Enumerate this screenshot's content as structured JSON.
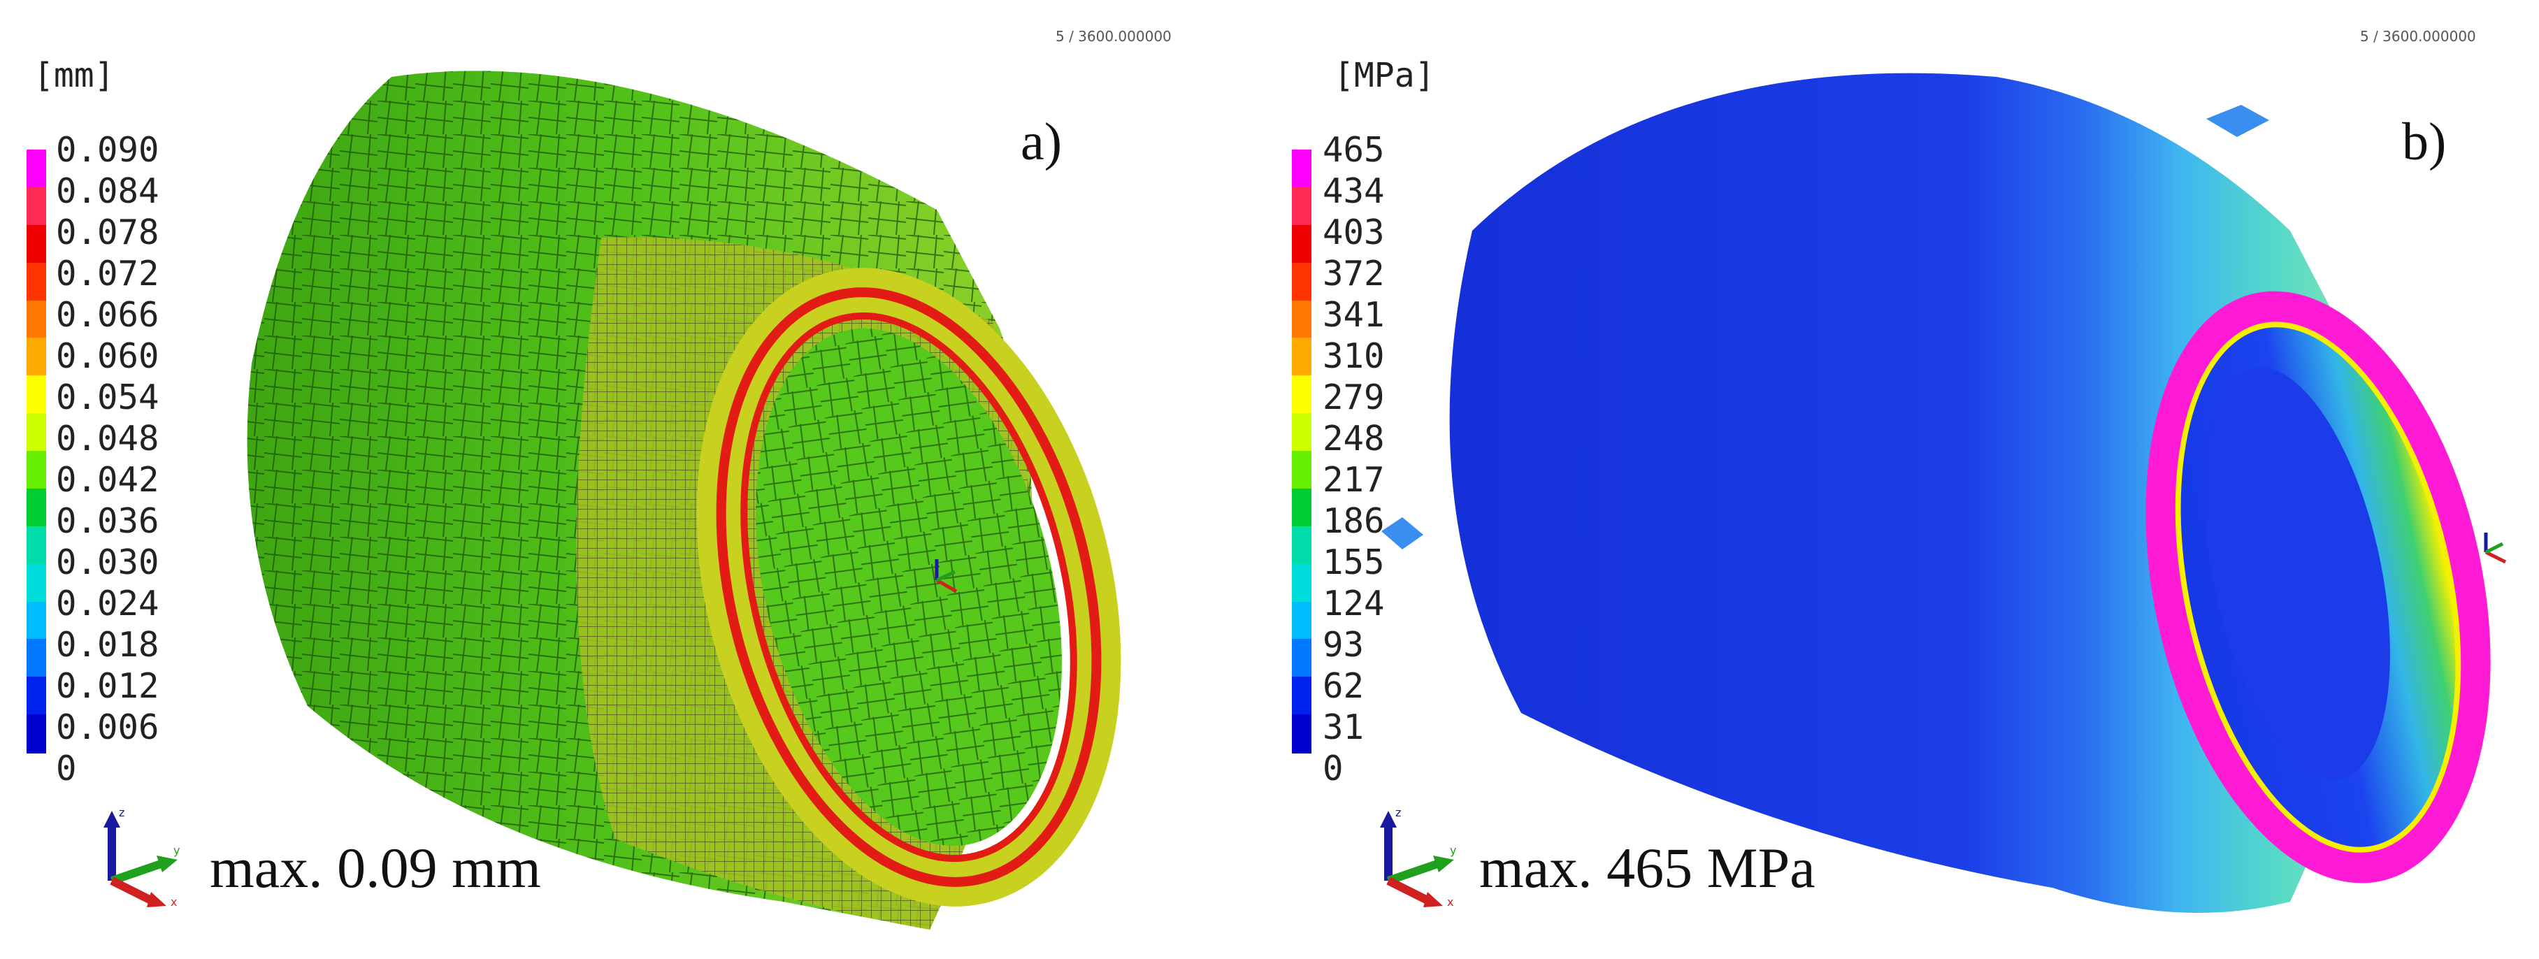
{
  "panels": [
    {
      "id": "a",
      "unit": "[mm]",
      "step_info": "5 / 3600.000000",
      "panel_label": "a)",
      "max_text": "max. 0.09 mm",
      "legend_ticks": [
        "0.090",
        "0.084",
        "0.078",
        "0.072",
        "0.066",
        "0.060",
        "0.054",
        "0.048",
        "0.042",
        "0.036",
        "0.030",
        "0.024",
        "0.018",
        "0.012",
        "0.006",
        "0"
      ],
      "max_value": 0.09
    },
    {
      "id": "b",
      "unit": "[MPa]",
      "step_info": "5 / 3600.000000",
      "panel_label": "b)",
      "max_text": "max. 465 MPa",
      "legend_ticks": [
        "465",
        "434",
        "403",
        "372",
        "341",
        "310",
        "279",
        "248",
        "217",
        "186",
        "155",
        "124",
        "93",
        "62",
        "31",
        "0"
      ],
      "max_value": 465
    }
  ],
  "colors": {
    "scale_top_to_bottom": [
      "#ff00ff",
      "#ff2a55",
      "#ee0000",
      "#ff3300",
      "#ff7700",
      "#ffaa00",
      "#ffff00",
      "#ccff00",
      "#66ee00",
      "#00cc33",
      "#00ddaa",
      "#00dddd",
      "#00bbff",
      "#0077ff",
      "#0022ee",
      "#0000cc"
    ],
    "mesh_green": "#4fc21a",
    "stress_blue": "#1a2fe0",
    "ring_magenta": "#ff1bd6"
  },
  "triad_axis_labels": [
    "z",
    "y",
    "x"
  ]
}
